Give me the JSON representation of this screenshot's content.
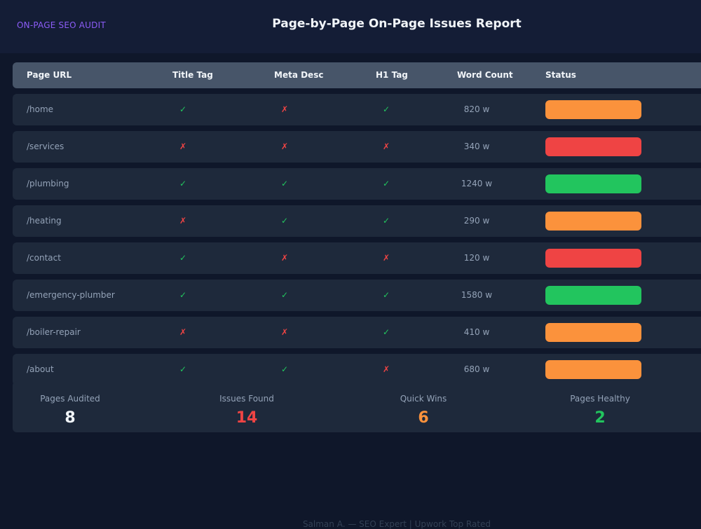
{
  "header": {
    "brand": "ON-PAGE SEO AUDIT",
    "title": "Page-by-Page On-Page Issues Report"
  },
  "table": {
    "columns": [
      "Page URL",
      "Title Tag",
      "Meta Desc",
      "H1 Tag",
      "Word Count",
      "Status"
    ],
    "rows": [
      {
        "url": "/home",
        "title": "✓",
        "meta": "✗",
        "h1": "✓",
        "words": "820 w",
        "status_color": "#fb923c"
      },
      {
        "url": "/services",
        "title": "✗",
        "meta": "✗",
        "h1": "✗",
        "words": "340 w",
        "status_color": "#ef4444"
      },
      {
        "url": "/plumbing",
        "title": "✓",
        "meta": "✓",
        "h1": "✓",
        "words": "1240 w",
        "status_color": "#22c55e"
      },
      {
        "url": "/heating",
        "title": "✗",
        "meta": "✓",
        "h1": "✓",
        "words": "290 w",
        "status_color": "#fb923c"
      },
      {
        "url": "/contact",
        "title": "✓",
        "meta": "✗",
        "h1": "✗",
        "words": "120 w",
        "status_color": "#ef4444"
      },
      {
        "url": "/emergency-plumber",
        "title": "✓",
        "meta": "✓",
        "h1": "✓",
        "words": "1580 w",
        "status_color": "#22c55e"
      },
      {
        "url": "/boiler-repair",
        "title": "✗",
        "meta": "✗",
        "h1": "✓",
        "words": "410 w",
        "status_color": "#fb923c"
      },
      {
        "url": "/about",
        "title": "✓",
        "meta": "✓",
        "h1": "✗",
        "words": "680 w",
        "status_color": "#fb923c"
      }
    ]
  },
  "summary": [
    {
      "label": "Pages Audited",
      "value": "8",
      "color": "#f1f5f9"
    },
    {
      "label": "Issues Found",
      "value": "14",
      "color": "#ef4444"
    },
    {
      "label": "Quick Wins",
      "value": "6",
      "color": "#fb923c"
    },
    {
      "label": "Pages Healthy",
      "value": "2",
      "color": "#22c55e"
    }
  ],
  "footer": "Salman A. — SEO Expert | Upwork Top Rated",
  "colors": {
    "ok": "#22c55e",
    "bad": "#ef4444",
    "warn": "#fb923c"
  }
}
